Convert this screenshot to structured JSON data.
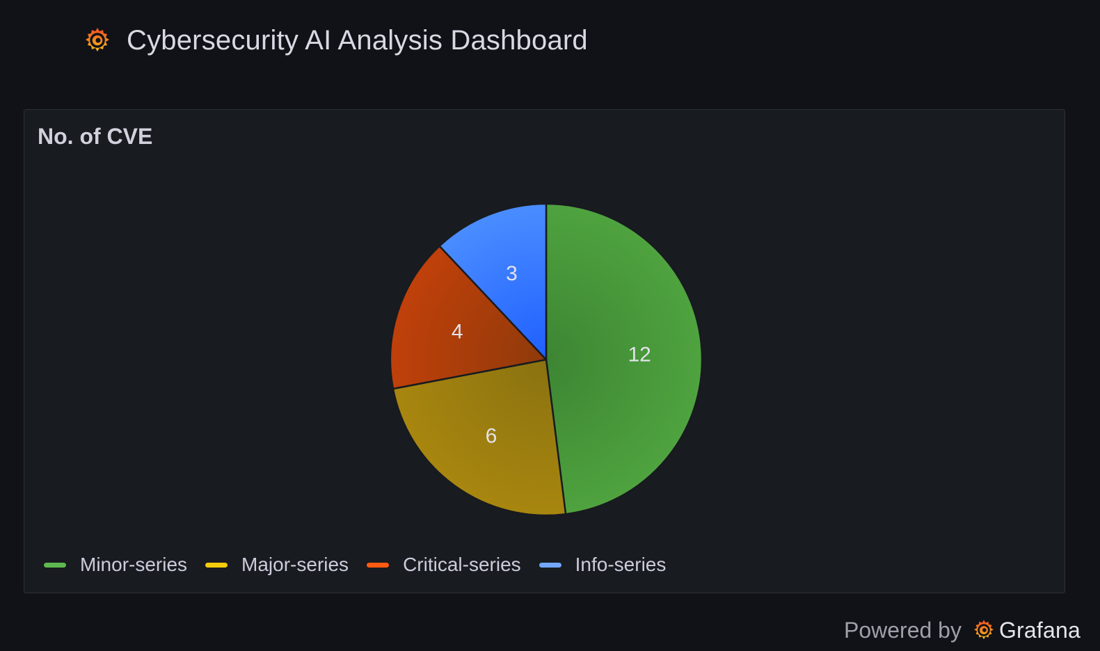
{
  "header": {
    "title": "Cybersecurity AI Analysis Dashboard",
    "logo_icon": "grafana-logo-icon"
  },
  "panel": {
    "title": "No. of CVE"
  },
  "chart_data": {
    "type": "pie",
    "title": "No. of CVE",
    "series": [
      {
        "name": "Minor-series",
        "value": 12,
        "color": "#56a64b",
        "gradient": [
          "#3d8533",
          "#4fa33f"
        ]
      },
      {
        "name": "Major-series",
        "value": 6,
        "color": "#fade2a",
        "gradient": [
          "#8a7210",
          "#a8860f"
        ]
      },
      {
        "name": "Critical-series",
        "value": 4,
        "color": "#ff780a",
        "gradient": [
          "#8f3a0a",
          "#c0400a"
        ]
      },
      {
        "name": "Info-series",
        "value": 3,
        "color": "#8ab8ff",
        "gradient": [
          "#1f5fff",
          "#4a8dff"
        ]
      }
    ],
    "legend_placement": "bottom-left",
    "slice_labels": "value"
  },
  "legend": {
    "items": [
      {
        "label": "Minor-series",
        "color": "#5fb84f"
      },
      {
        "label": "Major-series",
        "color": "#f2cc0c"
      },
      {
        "label": "Critical-series",
        "color": "#ff5a12"
      },
      {
        "label": "Info-series",
        "color": "#73a7ff"
      }
    ]
  },
  "footer": {
    "powered_label": "Powered by",
    "brand": "Grafana",
    "logo_icon": "grafana-logo-icon"
  }
}
